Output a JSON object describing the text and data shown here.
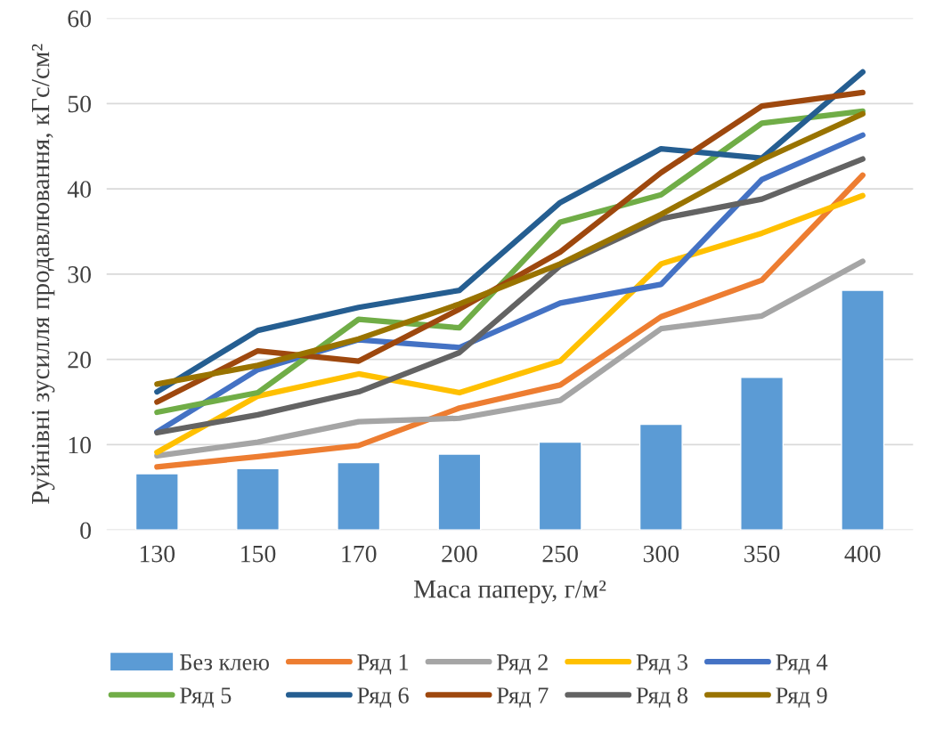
{
  "chart_data": {
    "type": "line",
    "xlabel": "Маса паперу, г/м²",
    "ylabel": "Руйнівні зусилля продавлювання, кГс/см²",
    "categories": [
      "130",
      "150",
      "170",
      "200",
      "250",
      "300",
      "350",
      "400"
    ],
    "ylim": [
      0,
      60
    ],
    "yticks": [
      0,
      10,
      20,
      30,
      40,
      50,
      60
    ],
    "grid": "y",
    "legend": "bottom",
    "marker": "none",
    "line_style": "solid",
    "series": [
      {
        "name": "Без клею",
        "type": "bar",
        "color": "#5b9bd5",
        "values": [
          6.6,
          7.2,
          7.9,
          8.9,
          10.3,
          12.4,
          17.9,
          28.1
        ]
      },
      {
        "name": "Ряд 1",
        "color": "#ed7d31",
        "values": [
          7.4,
          8.6,
          9.9,
          14.3,
          17.0,
          25.0,
          29.3,
          41.6
        ]
      },
      {
        "name": "Ряд 2",
        "color": "#a5a5a5",
        "values": [
          8.7,
          10.3,
          12.7,
          13.1,
          15.2,
          23.6,
          25.1,
          31.5
        ]
      },
      {
        "name": "Ряд 3",
        "color": "#ffc000",
        "values": [
          9.1,
          15.7,
          18.3,
          16.1,
          19.8,
          31.2,
          34.8,
          39.2
        ]
      },
      {
        "name": "Ряд 4",
        "color": "#4472c4",
        "values": [
          11.5,
          18.8,
          22.3,
          21.4,
          26.6,
          28.8,
          41.1,
          46.3
        ]
      },
      {
        "name": "Ряд 5",
        "color": "#70ad47",
        "values": [
          13.8,
          16.1,
          24.7,
          23.7,
          36.1,
          39.3,
          47.7,
          49.1
        ]
      },
      {
        "name": "Ряд 6",
        "color": "#255e91",
        "values": [
          16.2,
          23.4,
          26.1,
          28.1,
          38.4,
          44.7,
          43.6,
          53.7
        ]
      },
      {
        "name": "Ряд 7",
        "color": "#9e480e",
        "values": [
          15.0,
          21.0,
          19.8,
          25.9,
          32.6,
          41.9,
          49.7,
          51.3
        ]
      },
      {
        "name": "Ряд 8",
        "color": "#636363",
        "values": [
          11.4,
          13.5,
          16.2,
          20.8,
          31.0,
          36.5,
          38.8,
          43.5
        ]
      },
      {
        "name": "Ряд 9",
        "color": "#997300",
        "values": [
          17.1,
          19.3,
          22.4,
          26.5,
          31.2,
          37.0,
          43.4,
          48.8
        ]
      }
    ]
  }
}
